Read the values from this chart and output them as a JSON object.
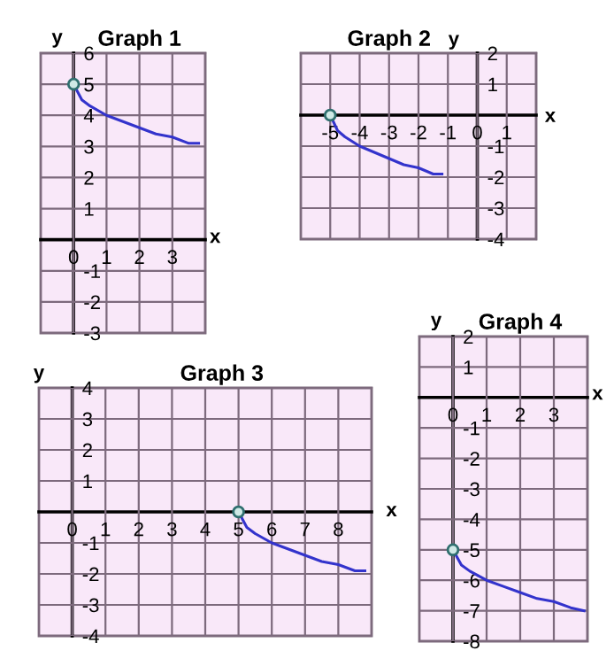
{
  "chart_data": [
    {
      "type": "line",
      "title": "Graph 1",
      "xlabel": "x",
      "ylabel": "y",
      "grid": true,
      "legend": false,
      "xlim": [
        -1,
        4
      ],
      "ylim": [
        -3,
        6
      ],
      "xticks": [
        0,
        1,
        2,
        3
      ],
      "yticks": [
        -3,
        -2,
        -1,
        1,
        2,
        3,
        4,
        5,
        6
      ],
      "series": [
        {
          "color": "#3333cc",
          "marker": "none",
          "x": [
            0,
            0.25,
            0.5,
            1,
            1.5,
            2,
            2.5,
            3,
            3.5,
            3.8
          ],
          "values": [
            5,
            4.5,
            4.3,
            4,
            3.8,
            3.6,
            3.4,
            3.3,
            3.1,
            3.1
          ]
        },
        {
          "type": "scatter",
          "color": "#2f6f6f",
          "marker": "circle",
          "x": [
            0
          ],
          "values": [
            5
          ]
        }
      ]
    },
    {
      "type": "line",
      "title": "Graph 2",
      "xlabel": "x",
      "ylabel": "y",
      "grid": true,
      "legend": false,
      "xlim": [
        -6,
        2
      ],
      "ylim": [
        -4,
        2
      ],
      "xticks": [
        -5,
        -4,
        -3,
        -2,
        -1,
        0,
        1
      ],
      "yticks": [
        -4,
        -3,
        -2,
        -1,
        1,
        2
      ],
      "series": [
        {
          "color": "#3333cc",
          "marker": "none",
          "x": [
            -5,
            -4.75,
            -4.5,
            -4,
            -3.5,
            -3,
            -2.5,
            -2,
            -1.5,
            -1.2
          ],
          "values": [
            0,
            -0.5,
            -0.7,
            -1,
            -1.2,
            -1.4,
            -1.6,
            -1.7,
            -1.9,
            -1.9
          ]
        },
        {
          "type": "scatter",
          "color": "#2f6f6f",
          "marker": "circle",
          "x": [
            -5
          ],
          "values": [
            0
          ]
        }
      ]
    },
    {
      "type": "line",
      "title": "Graph 3",
      "xlabel": "x",
      "ylabel": "y",
      "grid": true,
      "legend": false,
      "xlim": [
        -1,
        9
      ],
      "ylim": [
        -4,
        4
      ],
      "xticks": [
        0,
        1,
        2,
        3,
        4,
        5,
        6,
        7,
        8
      ],
      "yticks": [
        -4,
        -3,
        -2,
        -1,
        1,
        2,
        3,
        4
      ],
      "series": [
        {
          "color": "#3333cc",
          "marker": "none",
          "x": [
            5,
            5.25,
            5.5,
            6,
            6.5,
            7,
            7.5,
            8,
            8.5,
            8.8
          ],
          "values": [
            0,
            -0.5,
            -0.7,
            -1,
            -1.2,
            -1.4,
            -1.6,
            -1.7,
            -1.9,
            -1.9
          ]
        },
        {
          "type": "scatter",
          "color": "#2f6f6f",
          "marker": "circle",
          "x": [
            5
          ],
          "values": [
            0
          ]
        }
      ]
    },
    {
      "type": "line",
      "title": "Graph 4",
      "xlabel": "x",
      "ylabel": "y",
      "grid": true,
      "legend": false,
      "xlim": [
        -1,
        4
      ],
      "ylim": [
        -8,
        2
      ],
      "xticks": [
        0,
        1,
        2,
        3
      ],
      "yticks": [
        -8,
        -7,
        -6,
        -5,
        -4,
        -3,
        -2,
        -1,
        1,
        2
      ],
      "series": [
        {
          "color": "#3333cc",
          "marker": "none",
          "x": [
            0,
            0.25,
            0.5,
            1,
            1.5,
            2,
            2.5,
            3,
            3.5,
            3.9
          ],
          "values": [
            -5,
            -5.5,
            -5.7,
            -6,
            -6.2,
            -6.4,
            -6.6,
            -6.7,
            -6.9,
            -7
          ]
        },
        {
          "type": "scatter",
          "color": "#2f6f6f",
          "marker": "circle",
          "x": [
            0
          ],
          "values": [
            -5
          ]
        }
      ]
    }
  ]
}
